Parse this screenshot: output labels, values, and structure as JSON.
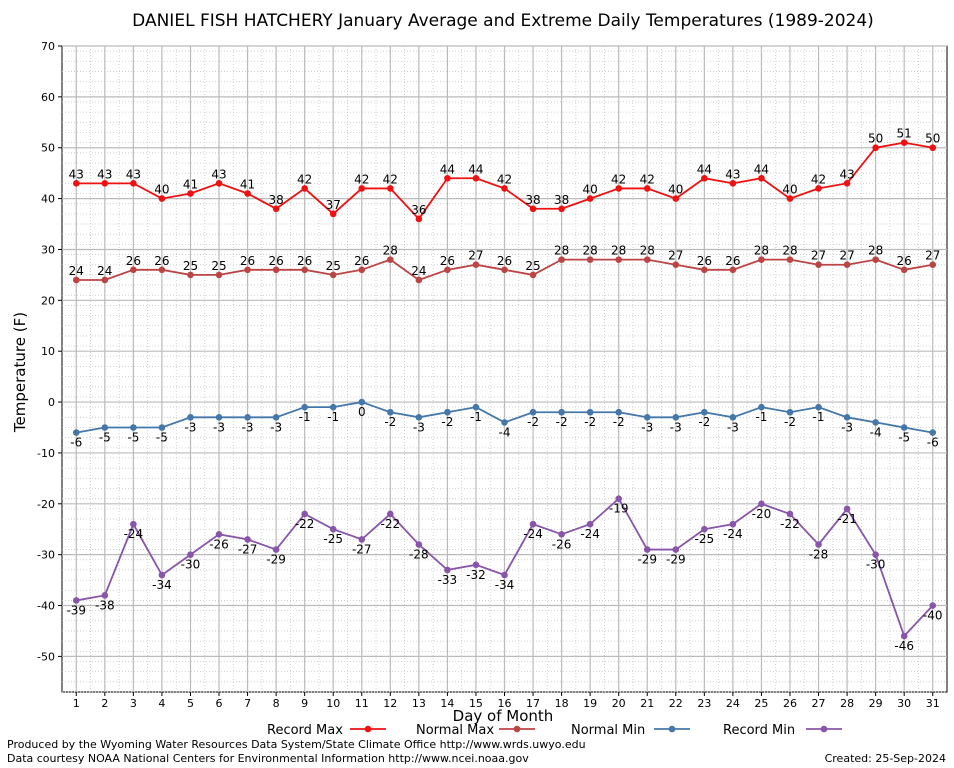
{
  "chart_data": {
    "type": "line",
    "title": "DANIEL FISH HATCHERY January Average and Extreme Daily Temperatures (1989-2024)",
    "xlabel": "Day of Month",
    "ylabel": "Temperature (F)",
    "ylim": [
      -57,
      70
    ],
    "y_ticks": [
      70,
      60,
      50,
      40,
      30,
      20,
      10,
      0,
      -10,
      -20,
      -30,
      -40,
      -50
    ],
    "x": [
      1,
      2,
      3,
      4,
      5,
      6,
      7,
      8,
      9,
      10,
      11,
      12,
      13,
      14,
      15,
      16,
      17,
      18,
      19,
      20,
      21,
      22,
      23,
      24,
      25,
      26,
      27,
      28,
      29,
      30,
      31
    ],
    "grid": true,
    "legend_position": "bottom",
    "series": [
      {
        "name": "Record Max",
        "color": "#ee1111",
        "values": [
          43,
          43,
          43,
          40,
          41,
          43,
          41,
          38,
          42,
          37,
          42,
          42,
          36,
          44,
          44,
          42,
          38,
          38,
          40,
          42,
          42,
          40,
          44,
          43,
          44,
          40,
          42,
          43,
          50,
          51,
          50
        ]
      },
      {
        "name": "Normal Max",
        "color": "#bb4444",
        "values": [
          24,
          24,
          26,
          26,
          25,
          25,
          26,
          26,
          26,
          25,
          26,
          28,
          24,
          26,
          27,
          26,
          25,
          28,
          28,
          28,
          28,
          27,
          26,
          26,
          28,
          28,
          27,
          27,
          28,
          26,
          27
        ]
      },
      {
        "name": "Normal Min",
        "color": "#4477aa",
        "values": [
          -6,
          -5,
          -5,
          -5,
          -3,
          -3,
          -3,
          -3,
          -1,
          -1,
          0,
          -2,
          -3,
          -2,
          -1,
          -4,
          -2,
          -2,
          -2,
          -2,
          -3,
          -3,
          -2,
          -3,
          -1,
          -2,
          -1,
          -3,
          -4,
          -5,
          -6
        ]
      },
      {
        "name": "Record Min",
        "color": "#8855aa",
        "values": [
          -39,
          -38,
          -24,
          -34,
          -30,
          -26,
          -27,
          -29,
          -22,
          -25,
          -27,
          -22,
          -28,
          -33,
          -32,
          -34,
          -24,
          -26,
          -24,
          -19,
          -29,
          -29,
          -25,
          -24,
          -20,
          -22,
          -28,
          -21,
          -30,
          -46,
          -40
        ]
      }
    ]
  },
  "footer": {
    "line1": "Produced by the Wyoming Water Resources Data System/State Climate Office http://www.wrds.uwyo.edu",
    "line2": "Data courtesy NOAA National Centers for Environmental Information http://www.ncei.noaa.gov",
    "created": "Created:  25-Sep-2024"
  }
}
